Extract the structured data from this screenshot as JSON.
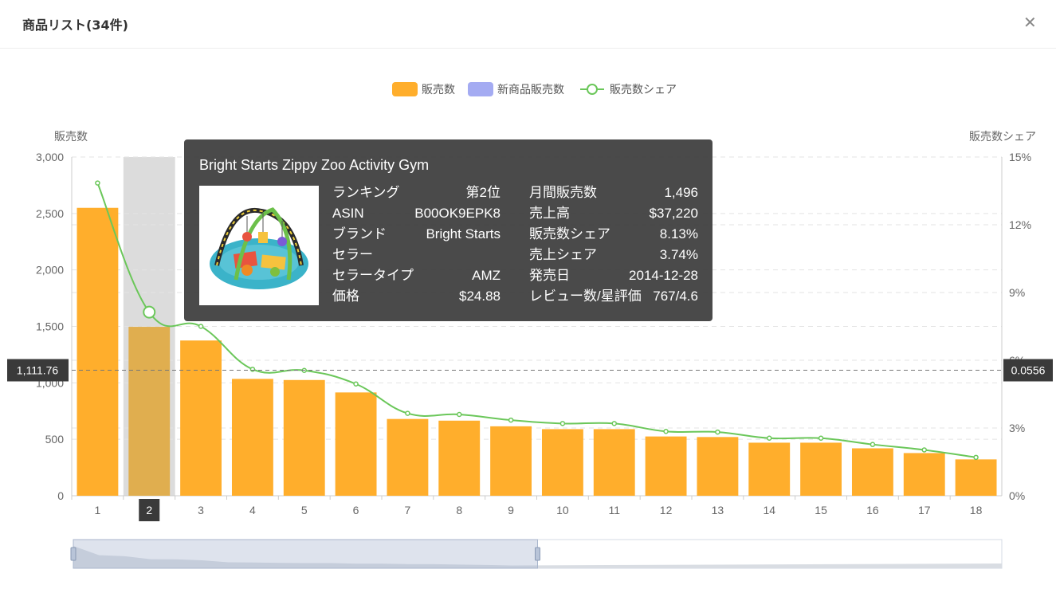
{
  "header": {
    "title": "商品リスト(34件)",
    "close_icon": "close-icon"
  },
  "chart_data": {
    "type": "bar",
    "legend": [
      "販売数",
      "新商品販売数",
      "販売数シェア"
    ],
    "legend_position": "top-center",
    "colors": {
      "bar": "#ffae2c",
      "new_bar": "#a4abf2",
      "line": "#6bc75a",
      "highlight_bar": "#e0ae4f",
      "band": "#dcdcdc"
    },
    "ylabel_left": "販売数",
    "ylabel_right": "販売数シェア",
    "ylim_left": [
      0,
      3000
    ],
    "ylim_right": [
      0,
      15
    ],
    "yticks_left": [
      "0",
      "500",
      "1,000",
      "1,500",
      "2,000",
      "2,500",
      "3,000"
    ],
    "yticks_right": [
      "0%",
      "3%",
      "6%",
      "9%",
      "12%",
      "15%"
    ],
    "categories": [
      "1",
      "2",
      "3",
      "4",
      "5",
      "6",
      "7",
      "8",
      "9",
      "10",
      "11",
      "12",
      "13",
      "14",
      "15",
      "16",
      "17",
      "18"
    ],
    "series": [
      {
        "name": "販売数",
        "type": "bar",
        "values": [
          2550,
          1496,
          1375,
          1035,
          1025,
          915,
          680,
          665,
          615,
          590,
          590,
          525,
          520,
          470,
          470,
          420,
          378,
          322
        ]
      },
      {
        "name": "販売数シェア",
        "type": "line",
        "values": [
          13.85,
          8.13,
          7.5,
          5.6,
          5.55,
          4.95,
          3.65,
          3.6,
          3.35,
          3.2,
          3.2,
          2.85,
          2.82,
          2.55,
          2.55,
          2.27,
          2.03,
          1.7
        ]
      }
    ],
    "grid": true,
    "highlighted_category": "2",
    "crosshair": {
      "left_label": "1,111.76",
      "right_label": "0.0556"
    },
    "zoom": {
      "start_percent": 0,
      "end_percent": 50
    }
  },
  "tooltip": {
    "title": "Bright Starts Zippy Zoo Activity Gym",
    "image_icon": "activity-gym-product-image",
    "left": [
      {
        "key": "ランキング",
        "value": "第2位"
      },
      {
        "key": "ASIN",
        "value": "B00OK9EPK8"
      },
      {
        "key": "ブランド",
        "value": "Bright Starts"
      },
      {
        "key": "セラー",
        "value": ""
      },
      {
        "key": "セラータイプ",
        "value": "AMZ"
      },
      {
        "key": "価格",
        "value": "$24.88"
      }
    ],
    "right": [
      {
        "key": "月間販売数",
        "value": "1,496"
      },
      {
        "key": "売上高",
        "value": "$37,220"
      },
      {
        "key": "販売数シェア",
        "value": "8.13%"
      },
      {
        "key": "売上シェア",
        "value": "3.74%"
      },
      {
        "key": "発売日",
        "value": "2014-12-28"
      },
      {
        "key": "レビュー数/星評価",
        "value": "767/4.6"
      }
    ]
  }
}
